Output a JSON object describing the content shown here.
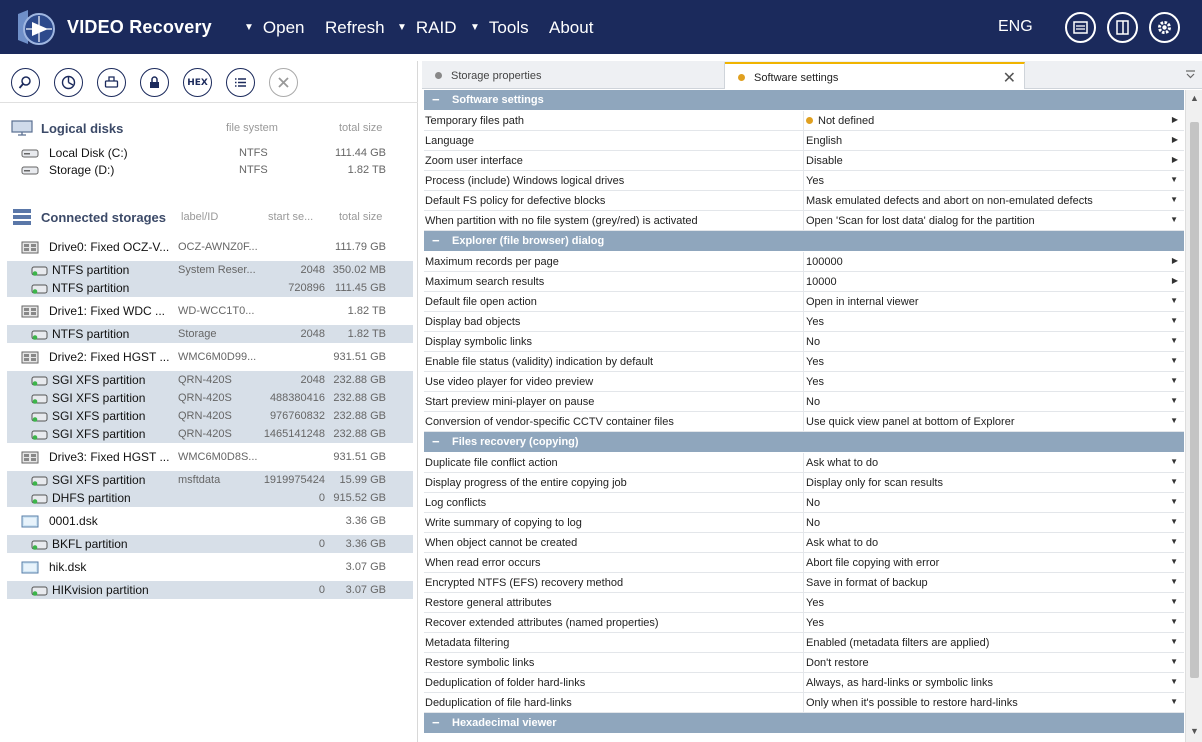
{
  "app": {
    "title": "VIDEO Recovery"
  },
  "menu": [
    {
      "label": "Open",
      "has_arrow": true
    },
    {
      "label": "Refresh",
      "has_arrow": false
    },
    {
      "label": "RAID",
      "has_arrow": true
    },
    {
      "label": "Tools",
      "has_arrow": true
    },
    {
      "label": "About",
      "has_arrow": false
    }
  ],
  "language": "ENG",
  "toolbar_icons": [
    "search-icon",
    "scan-icon",
    "image-icon",
    "lock-icon",
    "hex-icon",
    "list-icon",
    "close-icon"
  ],
  "toolbar_hex_label": "HEX",
  "logical": {
    "title": "Logical disks",
    "col_fs": "file system",
    "col_size": "total size",
    "items": [
      {
        "name": "Local Disk (C:)",
        "fs": "NTFS",
        "size": "111.44 GB"
      },
      {
        "name": "Storage (D:)",
        "fs": "NTFS",
        "size": "1.82 TB"
      }
    ]
  },
  "connected": {
    "title": "Connected storages",
    "col_label": "label/ID",
    "col_start": "start se...",
    "col_size": "total size",
    "items": [
      {
        "kind": "drive",
        "name": "Drive0: Fixed OCZ-V...",
        "label": "OCZ-AWNZ0F...",
        "start": "",
        "size": "111.79 GB"
      },
      {
        "kind": "part",
        "name": "NTFS partition",
        "label": "System Reser...",
        "start": "2048",
        "size": "350.02 MB"
      },
      {
        "kind": "part",
        "name": "NTFS partition",
        "label": "",
        "start": "720896",
        "size": "111.45 GB"
      },
      {
        "kind": "drive",
        "name": "Drive1: Fixed WDC ...",
        "label": "WD-WCC1T0...",
        "start": "",
        "size": "1.82 TB"
      },
      {
        "kind": "part",
        "name": "NTFS partition",
        "label": "Storage",
        "start": "2048",
        "size": "1.82 TB"
      },
      {
        "kind": "drive",
        "name": "Drive2: Fixed HGST ...",
        "label": "WMC6M0D99...",
        "start": "",
        "size": "931.51 GB"
      },
      {
        "kind": "part",
        "name": "SGI XFS partition",
        "label": "QRN-420S",
        "start": "2048",
        "size": "232.88 GB"
      },
      {
        "kind": "part",
        "name": "SGI XFS partition",
        "label": "QRN-420S",
        "start": "488380416",
        "size": "232.88 GB"
      },
      {
        "kind": "part",
        "name": "SGI XFS partition",
        "label": "QRN-420S",
        "start": "976760832",
        "size": "232.88 GB"
      },
      {
        "kind": "part",
        "name": "SGI XFS partition",
        "label": "QRN-420S",
        "start": "1465141248",
        "size": "232.88 GB"
      },
      {
        "kind": "drive",
        "name": "Drive3: Fixed HGST ...",
        "label": "WMC6M0D8S...",
        "start": "",
        "size": "931.51 GB"
      },
      {
        "kind": "part",
        "name": "SGI XFS partition",
        "label": "msftdata",
        "start": "1919975424",
        "size": "15.99 GB"
      },
      {
        "kind": "part",
        "name": "DHFS partition",
        "label": "",
        "start": "0",
        "size": "915.52 GB"
      },
      {
        "kind": "image",
        "name": "0001.dsk",
        "label": "",
        "start": "",
        "size": "3.36 GB"
      },
      {
        "kind": "part",
        "name": "BKFL partition",
        "label": "",
        "start": "0",
        "size": "3.36 GB"
      },
      {
        "kind": "image",
        "name": "hik.dsk",
        "label": "",
        "start": "",
        "size": "3.07 GB"
      },
      {
        "kind": "part",
        "name": "HIKvision partition",
        "label": "",
        "start": "0",
        "size": "3.07 GB"
      }
    ]
  },
  "tabs": [
    {
      "label": "Storage properties",
      "dot_color": "#888888",
      "active": false
    },
    {
      "label": "Software settings",
      "dot_color": "#e0a020",
      "active": true
    }
  ],
  "settings": [
    {
      "group": "Software settings",
      "rows": [
        {
          "name": "Temporary files path",
          "value": "Not defined",
          "flag": "dot",
          "arrow": "right"
        },
        {
          "name": "Language",
          "value": "English",
          "arrow": "right"
        },
        {
          "name": "Zoom user interface",
          "value": "Disable",
          "arrow": "right"
        },
        {
          "name": "Process (include) Windows logical drives",
          "value": "Yes",
          "arrow": "down"
        },
        {
          "name": "Default FS policy for defective blocks",
          "value": "Mask emulated defects and abort on non-emulated defects",
          "arrow": "down"
        },
        {
          "name": "When partition with no file system (grey/red) is activated",
          "value": "Open 'Scan for lost data' dialog for the partition",
          "arrow": "down"
        }
      ]
    },
    {
      "group": "Explorer (file browser) dialog",
      "rows": [
        {
          "name": "Maximum records per page",
          "value": "100000",
          "arrow": "right"
        },
        {
          "name": "Maximum search results",
          "value": "10000",
          "arrow": "right"
        },
        {
          "name": "Default file open action",
          "value": "Open in internal viewer",
          "arrow": "down"
        },
        {
          "name": "Display bad objects",
          "value": "Yes",
          "arrow": "down"
        },
        {
          "name": "Display symbolic links",
          "value": "No",
          "arrow": "down"
        },
        {
          "name": "Enable file status (validity) indication by default",
          "value": "Yes",
          "arrow": "down"
        },
        {
          "name": "Use video player for video preview",
          "value": "Yes",
          "arrow": "down"
        },
        {
          "name": "Start preview mini-player on pause",
          "value": "No",
          "arrow": "down"
        },
        {
          "name": "Conversion of vendor-specific CCTV container files",
          "value": "Use quick view panel at bottom of Explorer",
          "arrow": "down"
        }
      ]
    },
    {
      "group": "Files recovery (copying)",
      "rows": [
        {
          "name": "Duplicate file conflict action",
          "value": "Ask what to do",
          "arrow": "down"
        },
        {
          "name": "Display progress of the entire copying job",
          "value": "Display only for scan results",
          "arrow": "down"
        },
        {
          "name": "Log conflicts",
          "value": "No",
          "arrow": "down"
        },
        {
          "name": "Write summary of copying to log",
          "value": "No",
          "arrow": "down"
        },
        {
          "name": "When object cannot be created",
          "value": "Ask what to do",
          "arrow": "down"
        },
        {
          "name": "When read error occurs",
          "value": "Abort file copying with error",
          "arrow": "down"
        },
        {
          "name": "Encrypted NTFS (EFS) recovery method",
          "value": "Save in format of backup",
          "arrow": "down"
        },
        {
          "name": "Restore general attributes",
          "value": "Yes",
          "arrow": "down"
        },
        {
          "name": "Recover extended attributes (named properties)",
          "value": "Yes",
          "arrow": "down"
        },
        {
          "name": "Metadata filtering",
          "value": "Enabled (metadata filters are applied)",
          "arrow": "down"
        },
        {
          "name": "Restore symbolic links",
          "value": "Don't restore",
          "arrow": "down"
        },
        {
          "name": "Deduplication of folder hard-links",
          "value": "Always, as hard-links or symbolic links",
          "arrow": "down"
        },
        {
          "name": "Deduplication of file hard-links",
          "value": "Only when it's possible to restore hard-links",
          "arrow": "down"
        }
      ]
    },
    {
      "group": "Hexadecimal viewer",
      "rows": []
    }
  ],
  "colors": {
    "titlebar": "#1b2a5c",
    "group_header": "#8fa6bd",
    "selection": "#d7dfe8",
    "accent": "#e0a020"
  }
}
